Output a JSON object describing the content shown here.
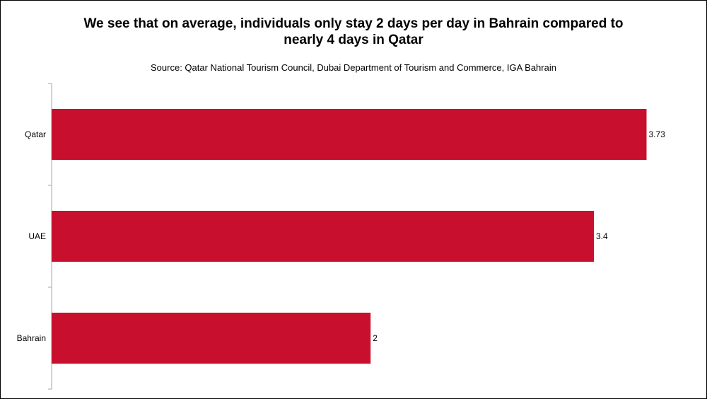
{
  "chart_data": {
    "type": "bar",
    "orientation": "horizontal",
    "title": "We see that on average, individuals only stay 2 days per day in Bahrain compared to nearly 4 days in Qatar",
    "subtitle": "Source:  Qatar National Tourism Council, Dubai Department of Tourism and Commerce, IGA Bahrain",
    "categories": [
      "Qatar",
      "UAE",
      "Bahrain"
    ],
    "values": [
      3.73,
      3.4,
      2
    ],
    "value_labels": [
      "3.73",
      "3.4",
      "2"
    ],
    "xlim": [
      0,
      3.75
    ],
    "bar_color": "#c8102e",
    "grid": false,
    "legend": "none"
  }
}
